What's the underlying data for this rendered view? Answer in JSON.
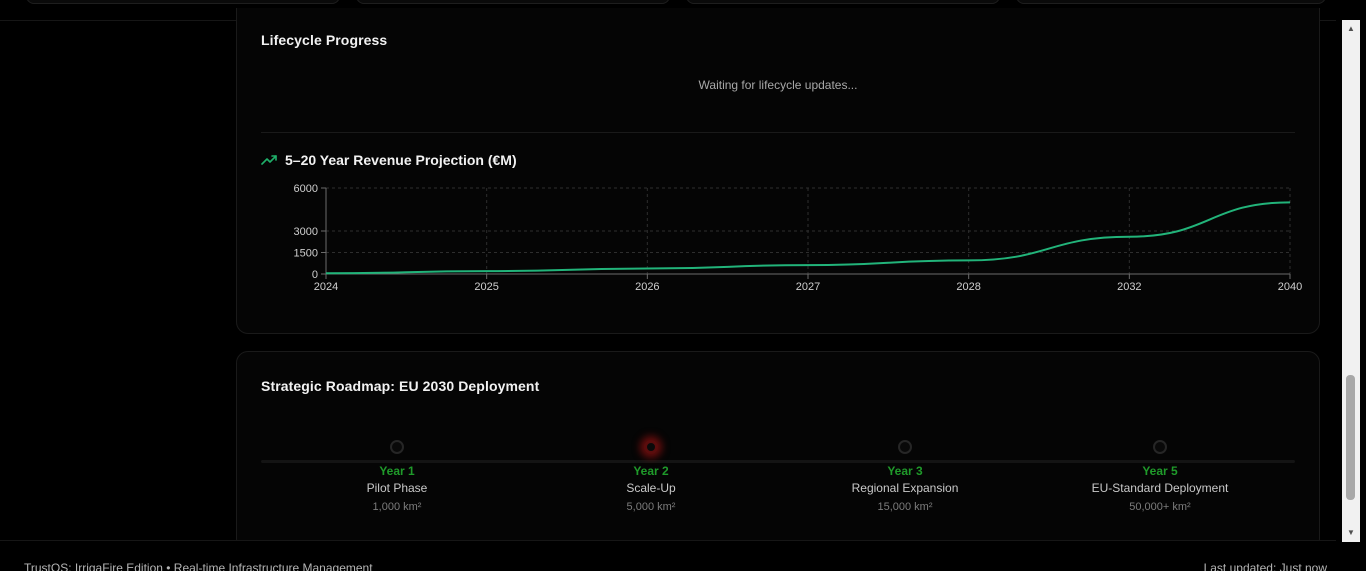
{
  "lifecycle": {
    "title": "Lifecycle Progress",
    "waiting_text": "Waiting for lifecycle updates..."
  },
  "projection": {
    "icon": "trending-up-icon",
    "title": "5–20 Year Revenue Projection (€M)"
  },
  "chart_data": {
    "type": "line",
    "title": "5–20 Year Revenue Projection (€M)",
    "xlabel": "",
    "ylabel": "",
    "categories": [
      "2024",
      "2025",
      "2026",
      "2027",
      "2028",
      "2032",
      "2040"
    ],
    "series": [
      {
        "values": [
          50,
          200,
          380,
          620,
          950,
          2600,
          5000
        ]
      }
    ],
    "yticks": [
      0,
      1500,
      3000,
      6000
    ],
    "ylim": [
      0,
      6000
    ],
    "grid": true,
    "line_color": "#22b47a"
  },
  "roadmap": {
    "title": "Strategic Roadmap: EU 2030 Deployment",
    "milestones": [
      {
        "year": "Year 1",
        "name": "Pilot Phase",
        "area": "1,000 km²",
        "active": false
      },
      {
        "year": "Year 2",
        "name": "Scale-Up",
        "area": "5,000 km²",
        "active": true
      },
      {
        "year": "Year 3",
        "name": "Regional Expansion",
        "area": "15,000 km²",
        "active": false
      },
      {
        "year": "Year 5",
        "name": "EU-Standard Deployment",
        "area": "50,000+ km²",
        "active": false
      }
    ]
  },
  "footer": {
    "left_text": "TrustOS: IrrigaFire Edition • Real-time Infrastructure Management",
    "right_text": "Last updated: Just now"
  },
  "colors": {
    "accent_green": "#1f9a2a",
    "chart_line": "#22b47a",
    "active_glow": "#be1414"
  }
}
